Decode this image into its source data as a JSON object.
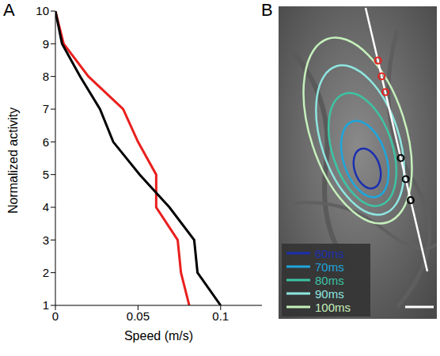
{
  "panel_labels": [
    "A",
    "B"
  ],
  "chart_data": {
    "type": "line",
    "x_label": "Speed (m/s)",
    "y_label": "Normalized activity",
    "y": [
      10,
      9,
      8,
      7,
      6,
      5,
      4,
      3,
      2,
      1
    ],
    "series": [
      {
        "color": "#e8201e",
        "x": [
          0,
          0.005,
          0.02,
          0.041,
          0.05,
          0.061,
          0.061,
          0.074,
          0.076,
          0.081
        ]
      },
      {
        "color": "#000000",
        "x": [
          0,
          0.004,
          0.015,
          0.027,
          0.035,
          0.051,
          0.069,
          0.084,
          0.086,
          0.1
        ]
      }
    ],
    "xlim": [
      0,
      0.125
    ],
    "xticks": [
      0,
      0.05,
      0.1
    ],
    "ylim": [
      1,
      10
    ],
    "yticks": [
      1,
      2,
      3,
      4,
      5,
      6,
      7,
      8,
      9,
      10
    ],
    "grid": false
  },
  "image": {
    "contours": [
      {
        "label": "60ms",
        "color": "#1b2fb0"
      },
      {
        "label": "70ms",
        "color": "#1ea6dc"
      },
      {
        "label": "80ms",
        "color": "#3cc4a4"
      },
      {
        "label": "90ms",
        "color": "#8ee6e0"
      },
      {
        "label": "100ms",
        "color": "#c6f0bc"
      }
    ]
  }
}
